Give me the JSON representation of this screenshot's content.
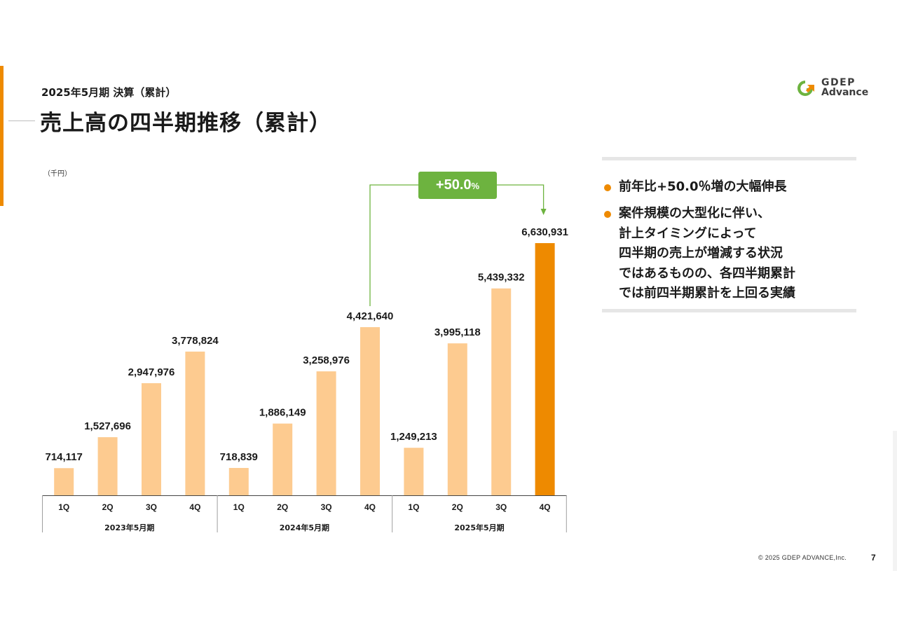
{
  "header": {
    "subtitle": "2025年5月期 決算（累計）",
    "title": "売上高の四半期推移（累計）"
  },
  "logo": {
    "line1": "GDEP",
    "line2": "Advance",
    "icon": "gdep-logo-icon",
    "colors": {
      "green": "#6db33f",
      "orange": "#ee8a00"
    }
  },
  "growth_badge": {
    "value": "+50.0",
    "unit": "%"
  },
  "points": [
    {
      "lines": [
        "前年比+50.0％増の大幅伸長"
      ]
    },
    {
      "lines": [
        "案件規模の大型化に伴い、",
        "計上タイミングによって",
        "四半期の売上が増減する状況",
        "ではあるものの、各四半期累計",
        "では前四半期累計を上回る実績"
      ]
    }
  ],
  "footer": {
    "copyright": "© 2025 GDEP ADVANCE,Inc.",
    "page": "7"
  },
  "chart_data": {
    "type": "bar",
    "unit_label": "（千円）",
    "ylim": [
      0,
      7000000
    ],
    "grid": false,
    "legend": "none",
    "groups": [
      {
        "label": "2023年5月期",
        "categories": [
          "1Q",
          "2Q",
          "3Q",
          "4Q"
        ],
        "values": [
          714117,
          1527696,
          2947976,
          3778824
        ],
        "value_labels": [
          "714,117",
          "1,527,696",
          "2,947,976",
          "3,778,824"
        ]
      },
      {
        "label": "2024年5月期",
        "categories": [
          "1Q",
          "2Q",
          "3Q",
          "4Q"
        ],
        "values": [
          718839,
          1886149,
          3258976,
          4421640
        ],
        "value_labels": [
          "718,839",
          "1,886,149",
          "3,258,976",
          "4,421,640"
        ]
      },
      {
        "label": "2025年5月期",
        "categories": [
          "1Q",
          "2Q",
          "3Q",
          "4Q"
        ],
        "values": [
          1249213,
          3995118,
          5439332,
          6630931
        ],
        "value_labels": [
          "1,249,213",
          "3,995,118",
          "5,439,332",
          "6,630,931"
        ]
      }
    ],
    "colors": {
      "bar": "#fdcb90",
      "highlight": "#ee8a00",
      "arrow": "#6db33f",
      "axis": "#444444"
    },
    "highlight": {
      "group": 2,
      "index": 3
    },
    "comparison": {
      "from": {
        "group": 1,
        "index": 3
      },
      "to": {
        "group": 2,
        "index": 3
      }
    }
  }
}
